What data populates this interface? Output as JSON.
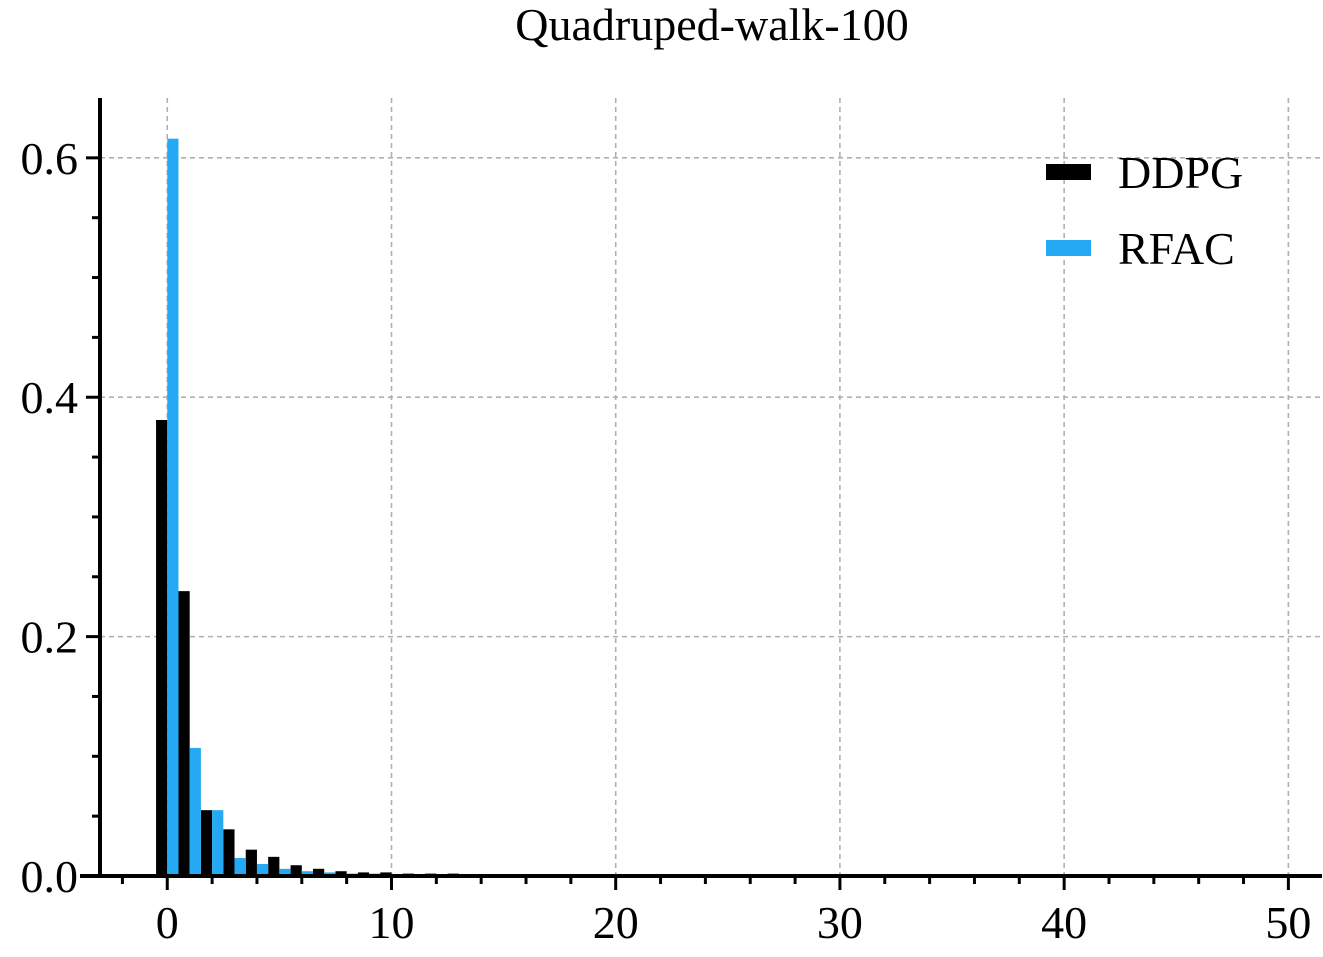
{
  "chart_data": {
    "type": "bar",
    "title": "Quadruped-walk-100",
    "xlabel": "",
    "ylabel": "",
    "xlim": [
      -3,
      51.5
    ],
    "ylim": [
      0,
      0.65
    ],
    "xticks": [
      0,
      10,
      20,
      30,
      40,
      50
    ],
    "yticks": [
      0.0,
      0.2,
      0.4,
      0.6
    ],
    "xtick_labels": [
      "0",
      "10",
      "20",
      "30",
      "40",
      "50"
    ],
    "ytick_labels": [
      "0.0",
      "0.2",
      "0.4",
      "0.6"
    ],
    "grid": true,
    "legend_position": "top-right",
    "bar_width": 0.5,
    "series": [
      {
        "name": "DDPG",
        "color": "#000000",
        "offset": -0.25,
        "x": [
          0,
          1,
          2,
          3,
          4,
          5,
          6,
          7,
          8,
          9,
          10,
          11,
          12,
          13,
          14,
          15
        ],
        "values": [
          0.381,
          0.238,
          0.055,
          0.039,
          0.022,
          0.016,
          0.009,
          0.006,
          0.004,
          0.003,
          0.003,
          0.002,
          0.002,
          0.002,
          0.001,
          0.001
        ]
      },
      {
        "name": "RFAC",
        "color": "#25a9f4",
        "offset": 0.25,
        "x": [
          0,
          1,
          2,
          3,
          4,
          5,
          6,
          7,
          8,
          9,
          10,
          11,
          12,
          13
        ],
        "values": [
          0.616,
          0.107,
          0.055,
          0.015,
          0.01,
          0.006,
          0.004,
          0.003,
          0.002,
          0.002,
          0.001,
          0.001,
          0.001,
          0.001
        ]
      }
    ]
  }
}
